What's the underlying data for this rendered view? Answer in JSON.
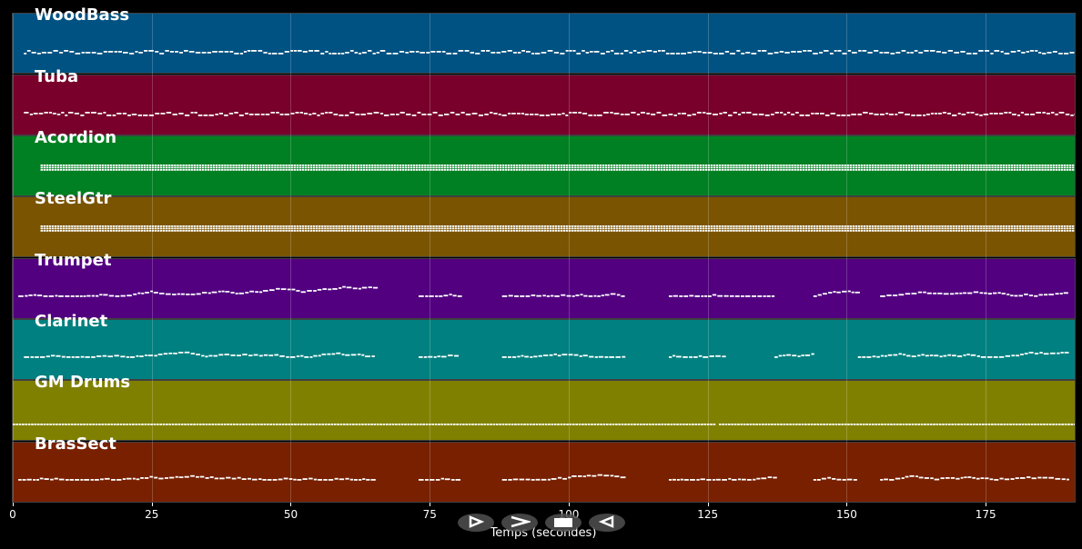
{
  "tracks": [
    {
      "name": "WoodBass",
      "color": "#005282",
      "style": "bass",
      "active": [
        [
          2,
          191
        ]
      ]
    },
    {
      "name": "Tuba",
      "color": "#78002a",
      "style": "bass",
      "active": [
        [
          2,
          191
        ]
      ]
    },
    {
      "name": "Acordion",
      "color": "#008022",
      "style": "chord",
      "active": [
        [
          5,
          191
        ]
      ]
    },
    {
      "name": "SteelGtr",
      "color": "#7a5400",
      "style": "chord",
      "active": [
        [
          5,
          191
        ]
      ]
    },
    {
      "name": "Trumpet",
      "color": "#520080",
      "style": "melody",
      "active": [
        [
          1,
          65
        ],
        [
          73,
          80
        ],
        [
          88,
          110
        ],
        [
          118,
          137
        ],
        [
          144,
          152
        ],
        [
          156,
          190
        ]
      ]
    },
    {
      "name": "Clarinet",
      "color": "#008080",
      "style": "melody",
      "active": [
        [
          2,
          65
        ],
        [
          73,
          80
        ],
        [
          88,
          110
        ],
        [
          118,
          128
        ],
        [
          137,
          144
        ],
        [
          152,
          190
        ]
      ]
    },
    {
      "name": "GM Drums",
      "color": "#808000",
      "style": "drums",
      "active": [
        [
          0,
          126
        ],
        [
          127,
          191
        ]
      ]
    },
    {
      "name": "BrasSect",
      "color": "#782000",
      "style": "melody",
      "active": [
        [
          1,
          65
        ],
        [
          73,
          80
        ],
        [
          88,
          110
        ],
        [
          118,
          137
        ],
        [
          144,
          152
        ],
        [
          156,
          190
        ]
      ]
    }
  ],
  "xaxis": {
    "label": "Temps (secondes)",
    "ticks": [
      0,
      25,
      50,
      75,
      100,
      125,
      150,
      175
    ],
    "range": [
      0,
      191
    ]
  },
  "controls": [
    {
      "name": "play-button",
      "glyph": "⊳"
    },
    {
      "name": "forward-button",
      "glyph": ">"
    },
    {
      "name": "stop-button",
      "glyph": "■"
    },
    {
      "name": "rewind-button",
      "glyph": "⊲"
    }
  ]
}
